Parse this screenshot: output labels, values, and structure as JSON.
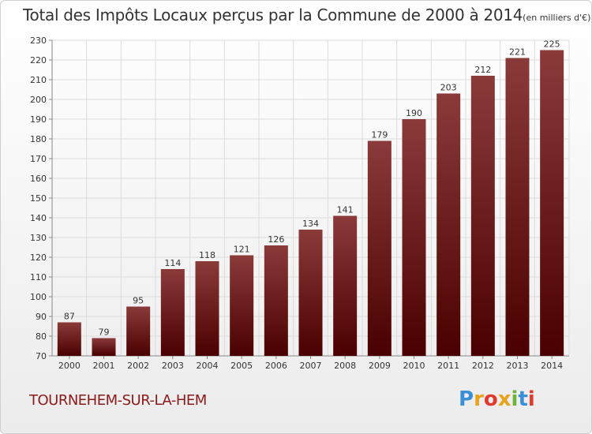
{
  "header": {
    "title": "Total des Impôts Locaux perçus par la Commune de 2000 à 2014",
    "unit": "(en milliers d'€)"
  },
  "footer": {
    "commune": "TOURNEHEM-SUR-LA-HEM",
    "logo_letters": [
      "P",
      "r",
      "o",
      "x",
      "i",
      "t",
      "i"
    ],
    "logo_colors": [
      "#3a8fd6",
      "#e8a21c",
      "#e23a2c",
      "#e8a21c",
      "#6cb33e",
      "#3a8fd6",
      "#e23a2c"
    ]
  },
  "chart_data": {
    "type": "bar",
    "title": "Total des Impôts Locaux perçus par la Commune de 2000 à 2014",
    "xlabel": "",
    "ylabel": "",
    "categories": [
      "2000",
      "2001",
      "2002",
      "2003",
      "2004",
      "2005",
      "2006",
      "2007",
      "2008",
      "2009",
      "2010",
      "2011",
      "2012",
      "2013",
      "2014"
    ],
    "values": [
      87,
      79,
      95,
      114,
      118,
      121,
      126,
      134,
      141,
      179,
      190,
      203,
      212,
      221,
      225
    ],
    "ylim": [
      70,
      230
    ],
    "yticks": [
      70,
      80,
      90,
      100,
      110,
      120,
      130,
      140,
      150,
      160,
      170,
      180,
      190,
      200,
      210,
      220,
      230
    ],
    "grid": true,
    "bar_color_top": "#8b3a3a",
    "bar_color_bottom": "#4a0000"
  }
}
